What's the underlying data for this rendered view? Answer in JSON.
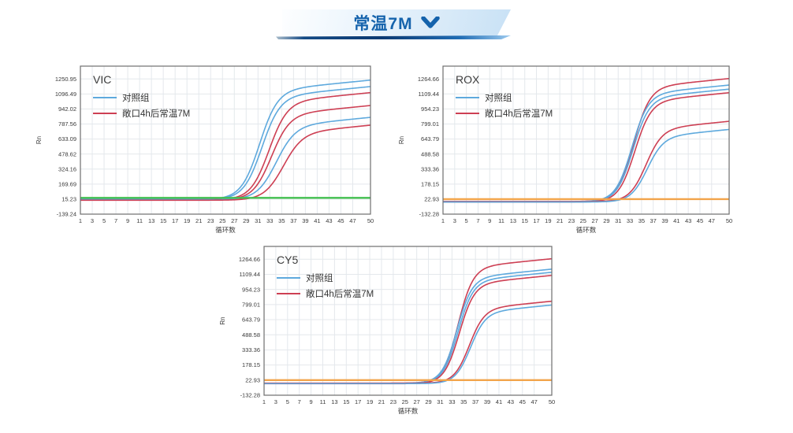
{
  "banner": {
    "label": "常温7M"
  },
  "colors": {
    "accent_blue": "#1563ac",
    "series_blue": "#5ea9dd",
    "series_red": "#cd3f53",
    "baseline_green": "#43c04f",
    "baseline_orange": "#f2a44a",
    "grid": "#e4e8ec",
    "plot_border": "#6e6e6e",
    "tick_text": "#3a3a3a"
  },
  "chart_data": [
    {
      "type": "line",
      "title": "VIC",
      "xlabel": "循环数",
      "ylabel": "Rn",
      "xlim": [
        1,
        50
      ],
      "ylim": [
        -139.24,
        1382.5
      ],
      "x_ticks": [
        1,
        3,
        5,
        7,
        9,
        11,
        13,
        15,
        17,
        19,
        21,
        23,
        25,
        27,
        29,
        31,
        33,
        35,
        37,
        39,
        41,
        43,
        45,
        47,
        50
      ],
      "y_ticks": [
        1250.95,
        1096.49,
        942.02,
        787.56,
        633.09,
        478.62,
        324.16,
        169.69,
        15.23,
        -139.24
      ],
      "grid": true,
      "legend_position": "top-left-inside",
      "legend": [
        {
          "label": "对照组",
          "color": "#5ea9dd"
        },
        {
          "label": "敞口4h后常温7M",
          "color": "#cd3f53"
        }
      ],
      "series": [
        {
          "name": "对照组-1",
          "color": "#5ea9dd",
          "model": "sigmoid",
          "baseline": 12,
          "amplitude": 1114,
          "ct_midpoint": 31.2,
          "slope": 0.65,
          "plateau_drift": 6,
          "value_at_50": 1239
        },
        {
          "name": "对照组-2",
          "color": "#5ea9dd",
          "model": "sigmoid",
          "baseline": 10,
          "amplitude": 1052,
          "ct_midpoint": 31.6,
          "slope": 0.65,
          "plateau_drift": 6,
          "value_at_50": 1172
        },
        {
          "name": "敞口4h后常温7M-1",
          "color": "#cd3f53",
          "model": "sigmoid",
          "baseline": 8,
          "amplitude": 999,
          "ct_midpoint": 32.8,
          "slope": 0.65,
          "plateau_drift": 6,
          "value_at_50": 1110
        },
        {
          "name": "敞口4h后常温7M-2",
          "color": "#cd3f53",
          "model": "sigmoid",
          "baseline": 6,
          "amplitude": 871,
          "ct_midpoint": 33.2,
          "slope": 0.65,
          "plateau_drift": 6,
          "value_at_50": 980
        },
        {
          "name": "对照组-3",
          "color": "#5ea9dd",
          "model": "sigmoid",
          "baseline": 9,
          "amplitude": 751,
          "ct_midpoint": 34.0,
          "slope": 0.62,
          "plateau_drift": 6,
          "value_at_50": 856
        },
        {
          "name": "敞口4h后常温7M-3",
          "color": "#cd3f53",
          "model": "sigmoid",
          "baseline": 4,
          "amplitude": 683,
          "ct_midpoint": 35.2,
          "slope": 0.62,
          "plateau_drift": 6,
          "value_at_50": 781
        },
        {
          "name": "flat-baseline",
          "color": "#43c04f",
          "model": "flat",
          "value": 28
        }
      ]
    },
    {
      "type": "line",
      "title": "ROX",
      "xlabel": "循环数",
      "ylabel": "Rn",
      "xlim": [
        1,
        50
      ],
      "ylim": [
        -132.28,
        1396.6
      ],
      "x_ticks": [
        1,
        3,
        5,
        7,
        9,
        11,
        13,
        15,
        17,
        19,
        21,
        23,
        25,
        27,
        29,
        31,
        33,
        35,
        37,
        39,
        41,
        43,
        45,
        47,
        50
      ],
      "y_ticks": [
        1264.66,
        1109.44,
        954.23,
        799.01,
        643.79,
        488.58,
        333.36,
        178.15,
        22.93,
        -132.28
      ],
      "grid": true,
      "legend_position": "top-left-inside",
      "legend": [
        {
          "label": "对照组",
          "color": "#5ea9dd"
        },
        {
          "label": "敞口4h后常温7M",
          "color": "#cd3f53"
        }
      ],
      "series": [
        {
          "name": "敞口4h后常温7M-1",
          "color": "#cd3f53",
          "model": "sigmoid",
          "baseline": -2,
          "amplitude": 1172,
          "ct_midpoint": 33.6,
          "slope": 0.72,
          "plateau_drift": 6,
          "value_at_50": 1268
        },
        {
          "name": "对照组-1",
          "color": "#5ea9dd",
          "model": "sigmoid",
          "baseline": -4,
          "amplitude": 1105,
          "ct_midpoint": 33.3,
          "slope": 0.72,
          "plateau_drift": 6,
          "value_at_50": 1201
        },
        {
          "name": "对照组-2",
          "color": "#5ea9dd",
          "model": "sigmoid",
          "baseline": -6,
          "amplitude": 1066,
          "ct_midpoint": 33.5,
          "slope": 0.72,
          "plateau_drift": 6,
          "value_at_50": 1159
        },
        {
          "name": "敞口4h后常温7M-2",
          "color": "#cd3f53",
          "model": "sigmoid",
          "baseline": -8,
          "amplitude": 1033,
          "ct_midpoint": 33.8,
          "slope": 0.72,
          "plateau_drift": 6,
          "value_at_50": 1122
        },
        {
          "name": "敞口4h后常温7M-3",
          "color": "#cd3f53",
          "model": "sigmoid",
          "baseline": -3,
          "amplitude": 744,
          "ct_midpoint": 35.7,
          "slope": 0.72,
          "plateau_drift": 6,
          "value_at_50": 827
        },
        {
          "name": "对照组-3",
          "color": "#5ea9dd",
          "model": "sigmoid",
          "baseline": -7,
          "amplitude": 665,
          "ct_midpoint": 35.9,
          "slope": 0.72,
          "plateau_drift": 6,
          "value_at_50": 743
        },
        {
          "name": "flat-baseline",
          "color": "#f2a44a",
          "model": "flat",
          "value": 23
        }
      ]
    },
    {
      "type": "line",
      "title": "CY5",
      "xlabel": "循环数",
      "ylabel": "Rn",
      "xlim": [
        1,
        50
      ],
      "ylim": [
        -132.28,
        1396.6
      ],
      "x_ticks": [
        1,
        3,
        5,
        7,
        9,
        11,
        13,
        15,
        17,
        19,
        21,
        23,
        25,
        27,
        29,
        31,
        33,
        35,
        37,
        39,
        41,
        43,
        45,
        47,
        50
      ],
      "y_ticks": [
        1264.66,
        1109.44,
        954.23,
        799.01,
        643.79,
        488.58,
        333.36,
        178.15,
        22.93,
        -132.28
      ],
      "grid": true,
      "legend_position": "top-left-inside",
      "legend": [
        {
          "label": "对照组",
          "color": "#5ea9dd"
        },
        {
          "label": "敞口4h后常温7M",
          "color": "#cd3f53"
        }
      ],
      "series": [
        {
          "name": "敞口4h后常温7M-1",
          "color": "#cd3f53",
          "model": "sigmoid",
          "baseline": -8,
          "amplitude": 1182,
          "ct_midpoint": 34.0,
          "slope": 0.78,
          "plateau_drift": 6,
          "value_at_50": 1270
        },
        {
          "name": "对照组-1",
          "color": "#5ea9dd",
          "model": "sigmoid",
          "baseline": -10,
          "amplitude": 1076,
          "ct_midpoint": 33.8,
          "slope": 0.78,
          "plateau_drift": 6,
          "value_at_50": 1163
        },
        {
          "name": "对照组-2",
          "color": "#5ea9dd",
          "model": "sigmoid",
          "baseline": -12,
          "amplitude": 1047,
          "ct_midpoint": 34.0,
          "slope": 0.78,
          "plateau_drift": 6,
          "value_at_50": 1131
        },
        {
          "name": "敞口4h后常温7M-2",
          "color": "#cd3f53",
          "model": "sigmoid",
          "baseline": -14,
          "amplitude": 1018,
          "ct_midpoint": 34.2,
          "slope": 0.78,
          "plateau_drift": 6,
          "value_at_50": 1099
        },
        {
          "name": "敞口4h后常温7M-3",
          "color": "#cd3f53",
          "model": "sigmoid",
          "baseline": -9,
          "amplitude": 758,
          "ct_midpoint": 35.9,
          "slope": 0.78,
          "plateau_drift": 6,
          "value_at_50": 834
        },
        {
          "name": "对照组-3",
          "color": "#5ea9dd",
          "model": "sigmoid",
          "baseline": -13,
          "amplitude": 724,
          "ct_midpoint": 36.1,
          "slope": 0.78,
          "plateau_drift": 6,
          "value_at_50": 795
        },
        {
          "name": "flat-baseline",
          "color": "#f2a44a",
          "model": "flat",
          "value": 23
        }
      ]
    }
  ]
}
